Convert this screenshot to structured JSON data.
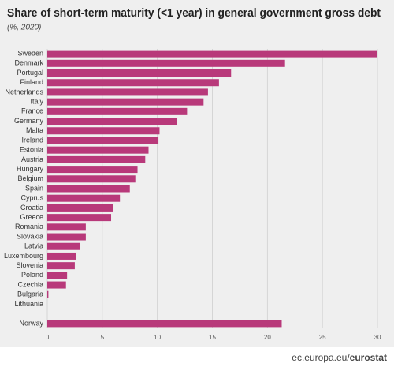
{
  "chart_data": {
    "type": "hbar",
    "title": "Share of short-term maturity (<1 year) in general government gross debt",
    "subtitle": "(%, 2020)",
    "categories": [
      "Sweden",
      "Denmark",
      "Portugal",
      "Finland",
      "Netherlands",
      "Italy",
      "France",
      "Germany",
      "Malta",
      "Ireland",
      "Estonia",
      "Austria",
      "Hungary",
      "Belgium",
      "Spain",
      "Cyprus",
      "Croatia",
      "Greece",
      "Romania",
      "Slovakia",
      "Latvia",
      "Luxembourg",
      "Slovenia",
      "Poland",
      "Czechia",
      "Bulgaria",
      "Lithuania",
      null,
      "Norway"
    ],
    "values": [
      30,
      21.6,
      16.7,
      15.6,
      14.6,
      14.2,
      12.7,
      11.8,
      10.2,
      10.1,
      9.2,
      8.9,
      8.2,
      8.0,
      7.5,
      6.6,
      6.0,
      5.8,
      3.5,
      3.5,
      3.0,
      2.6,
      2.5,
      1.8,
      1.7,
      0.1,
      0,
      null,
      21.3
    ],
    "color": "#b8397a",
    "xlim": [
      0,
      30
    ],
    "xticks": [
      0,
      5,
      10,
      15,
      20,
      25,
      30
    ],
    "grid": true,
    "source": "ec.europa.eu/",
    "source_brand": "eurostat"
  }
}
